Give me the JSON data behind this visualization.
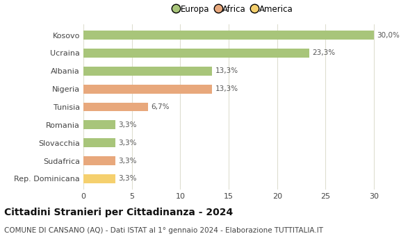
{
  "categories": [
    "Kosovo",
    "Ucraina",
    "Albania",
    "Nigeria",
    "Tunisia",
    "Romania",
    "Slovacchia",
    "Sudafrica",
    "Rep. Dominicana"
  ],
  "values": [
    30.0,
    23.3,
    13.3,
    13.3,
    6.7,
    3.3,
    3.3,
    3.3,
    3.3
  ],
  "labels": [
    "30,0%",
    "23,3%",
    "13,3%",
    "13,3%",
    "6,7%",
    "3,3%",
    "3,3%",
    "3,3%",
    "3,3%"
  ],
  "bar_colors": [
    "#a8c57a",
    "#a8c57a",
    "#a8c57a",
    "#e8a87c",
    "#e8a87c",
    "#a8c57a",
    "#a8c57a",
    "#e8a87c",
    "#f5d06e"
  ],
  "legend_labels": [
    "Europa",
    "Africa",
    "America"
  ],
  "legend_colors": [
    "#a8c57a",
    "#e8a87c",
    "#f5d06e"
  ],
  "title": "Cittadini Stranieri per Cittadinanza - 2024",
  "subtitle": "COMUNE DI CANSANO (AQ) - Dati ISTAT al 1° gennaio 2024 - Elaborazione TUTTITALIA.IT",
  "xlim": [
    0,
    31
  ],
  "xticks": [
    0,
    5,
    10,
    15,
    20,
    25,
    30
  ],
  "background_color": "#ffffff",
  "grid_color": "#deded0",
  "bar_height": 0.5,
  "title_fontsize": 10,
  "subtitle_fontsize": 7.5,
  "label_fontsize": 7.5,
  "tick_fontsize": 8,
  "legend_fontsize": 8.5
}
